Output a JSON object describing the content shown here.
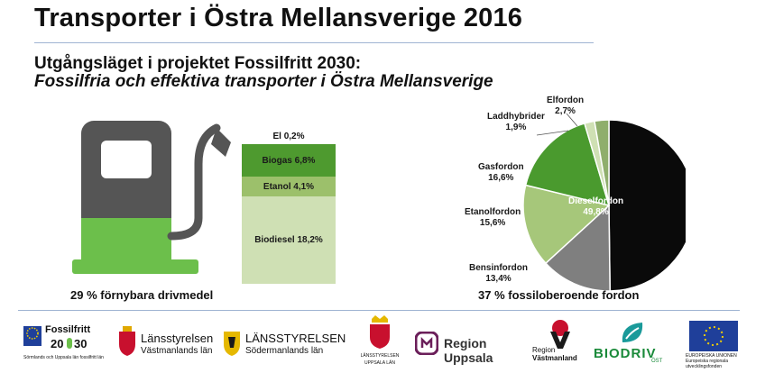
{
  "title": "Transporter i Östra Mellansverige 2016",
  "subtitle1": "Utgångsläget i projektet Fossilfritt 2030:",
  "subtitle2": "Fossilfria och effektiva transporter i Östra Mellansverige",
  "fuel": {
    "el_label": "El 0,2%",
    "segments": [
      {
        "label": "Biogas 6,8%",
        "value": 6.8,
        "color": "#4e9a2f",
        "text_color": "#1a1a1a"
      },
      {
        "label": "Etanol 4,1%",
        "value": 4.1,
        "color": "#9cc06b",
        "text_color": "#1a1a1a"
      },
      {
        "label": "Biodiesel 18,2%",
        "value": 18.2,
        "color": "#cfe0b4",
        "text_color": "#1a1a1a"
      }
    ],
    "caption": "29 % förnybara drivmedel"
  },
  "chart_data": {
    "type": "pie",
    "slices": [
      {
        "name": "Dieselfordon",
        "value": 49.8,
        "label": "Dieselfordon\n49,8%",
        "color": "#0a0a0a"
      },
      {
        "name": "Bensinfordon",
        "value": 13.4,
        "label": "Bensinfordon\n13,4%",
        "color": "#7f7f7f"
      },
      {
        "name": "Etanolfordon",
        "value": 15.6,
        "label": "Etanolfordon\n15,6%",
        "color": "#a6c77a"
      },
      {
        "name": "Gasfordon",
        "value": 16.6,
        "label": "Gasfordon\n16,6%",
        "color": "#4a9a2e"
      },
      {
        "name": "Laddhybrider",
        "value": 1.9,
        "label": "Laddhybrider\n1,9%",
        "color": "#cfe0b4"
      },
      {
        "name": "Elfordon",
        "value": 2.7,
        "label": "Elfordon\n2,7%",
        "color": "#8fae6c"
      }
    ],
    "caption": "37 % fossiloberoende fordon"
  },
  "logos": {
    "fossilfritt": {
      "line1": "Fossilfritt",
      "line2": "20",
      "line3": "30",
      "small": "Sörmlands och Uppsala län fossilfritt län"
    },
    "lst_vastmanland": {
      "name": "Länsstyrelsen",
      "region": "Västmanlands län"
    },
    "lst_sodermanland": {
      "name": "LÄNSSTYRELSEN",
      "region": "Södermanlands län"
    },
    "lst_uppsala": {
      "name": "LÄNSSTYRELSEN",
      "region": "UPPSALA LÄN"
    },
    "region_uppsala": "Region Uppsala",
    "region_vastmanland": {
      "line1": "Region",
      "line2": "Västmanland"
    },
    "biodriv": {
      "name": "BIODRIV",
      "sub": "ÖST"
    },
    "eu": {
      "line1": "EUROPEISKA UNIONEN",
      "line2": "Europeiska regionala",
      "line3": "utvecklingsfonden"
    }
  }
}
